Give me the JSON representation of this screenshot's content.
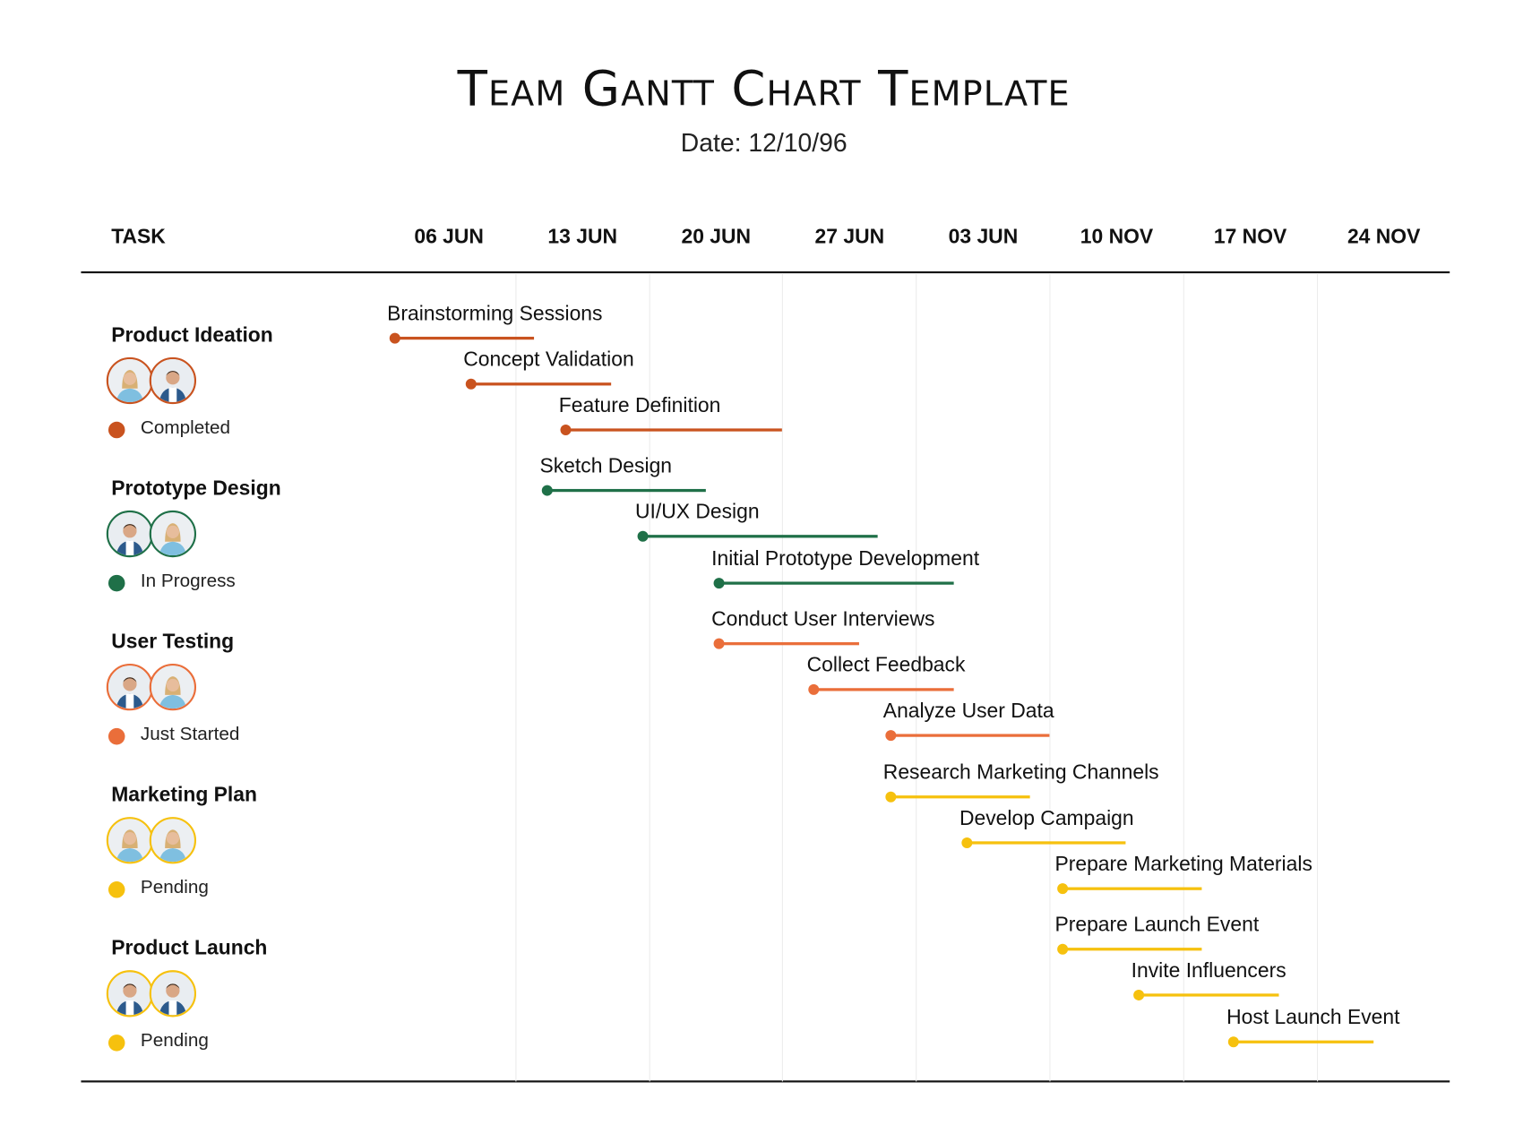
{
  "header": {
    "title": "Team Gantt Chart Template",
    "date": "Date: 12/10/96"
  },
  "chart_data": {
    "type": "gantt",
    "task_column_label": "TASK",
    "columns": [
      "06 JUN",
      "13 JUN",
      "20 JUN",
      "27 JUN",
      "03 JUN",
      "10 NOV",
      "17 NOV",
      "24 NOV"
    ],
    "grid": true,
    "status_colors": {
      "Completed": "#c9531f",
      "In Progress": "#1f7048",
      "Just Started": "#ea6e3a",
      "Pending": "#f6c10e"
    },
    "groups": [
      {
        "name": "Product Ideation",
        "status": "Completed",
        "avatars": [
          "woman-avatar-icon",
          "man-avatar-icon"
        ],
        "tasks": [
          {
            "name": "Brainstorming Sessions",
            "start_day": 1,
            "end_day": 8
          },
          {
            "name": "Concept Validation",
            "start_day": 5,
            "end_day": 12
          },
          {
            "name": "Feature Definition",
            "start_day": 10,
            "end_day": 21
          }
        ]
      },
      {
        "name": "Prototype Design",
        "status": "In Progress",
        "avatars": [
          "man-avatar-icon",
          "woman-avatar-icon"
        ],
        "tasks": [
          {
            "name": "Sketch Design",
            "start_day": 9,
            "end_day": 17
          },
          {
            "name": "UI/UX Design",
            "start_day": 14,
            "end_day": 26
          },
          {
            "name": "Initial Prototype Development",
            "start_day": 18,
            "end_day": 30
          }
        ]
      },
      {
        "name": "User Testing",
        "status": "Just Started",
        "avatars": [
          "man-avatar-icon",
          "woman-avatar-icon"
        ],
        "tasks": [
          {
            "name": "Conduct User Interviews",
            "start_day": 18,
            "end_day": 25
          },
          {
            "name": "Collect Feedback",
            "start_day": 23,
            "end_day": 30
          },
          {
            "name": "Analyze User Data",
            "start_day": 27,
            "end_day": 35
          }
        ]
      },
      {
        "name": "Marketing Plan",
        "status": "Pending",
        "avatars": [
          "woman-avatar-icon",
          "woman-avatar-icon"
        ],
        "tasks": [
          {
            "name": "Research Marketing Channels",
            "start_day": 27,
            "end_day": 34
          },
          {
            "name": "Develop Campaign",
            "start_day": 31,
            "end_day": 39
          },
          {
            "name": "Prepare Marketing Materials",
            "start_day": 36,
            "end_day": 43
          }
        ]
      },
      {
        "name": "Product Launch",
        "status": "Pending",
        "avatars": [
          "man-avatar-icon",
          "man-avatar-icon"
        ],
        "tasks": [
          {
            "name": "Prepare Launch Event",
            "start_day": 36,
            "end_day": 43
          },
          {
            "name": "Invite Influencers",
            "start_day": 40,
            "end_day": 47
          },
          {
            "name": "Host Launch Event",
            "start_day": 45,
            "end_day": 52
          }
        ]
      }
    ]
  }
}
